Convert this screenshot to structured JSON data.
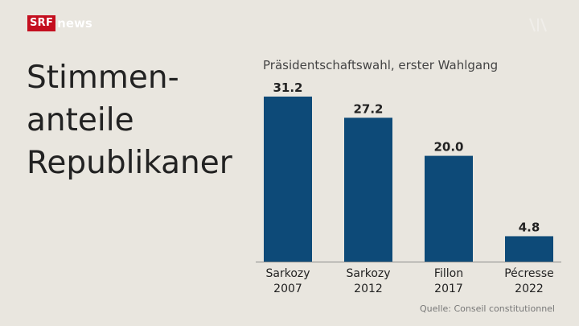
{
  "brand": {
    "srf": "SRF",
    "news": "news"
  },
  "title_lines": [
    "Stimmen-",
    "anteile",
    "Republikaner"
  ],
  "subtitle": "Präsidentschaftswahl, erster Wahlgang",
  "source": "Quelle: Conseil constitutionnel",
  "colors": {
    "bar": "#0d4a78",
    "background": "#e9e6df",
    "axis": "#8a8a8a",
    "brand_red": "#c40f1f"
  },
  "chart_data": {
    "type": "bar",
    "title": "Präsidentschaftswahl, erster Wahlgang",
    "categories": [
      [
        "Sarkozy",
        "2007"
      ],
      [
        "Sarkozy",
        "2012"
      ],
      [
        "Fillon",
        "2017"
      ],
      [
        "Pécresse",
        "2022"
      ]
    ],
    "values": [
      31.2,
      27.2,
      20.0,
      4.8
    ],
    "data_labels": [
      "31.2",
      "27.2",
      "20.0",
      "4.8"
    ],
    "xlabel": "",
    "ylabel": "",
    "ylim": [
      0,
      31.2
    ],
    "grid": false,
    "legend": "none"
  }
}
